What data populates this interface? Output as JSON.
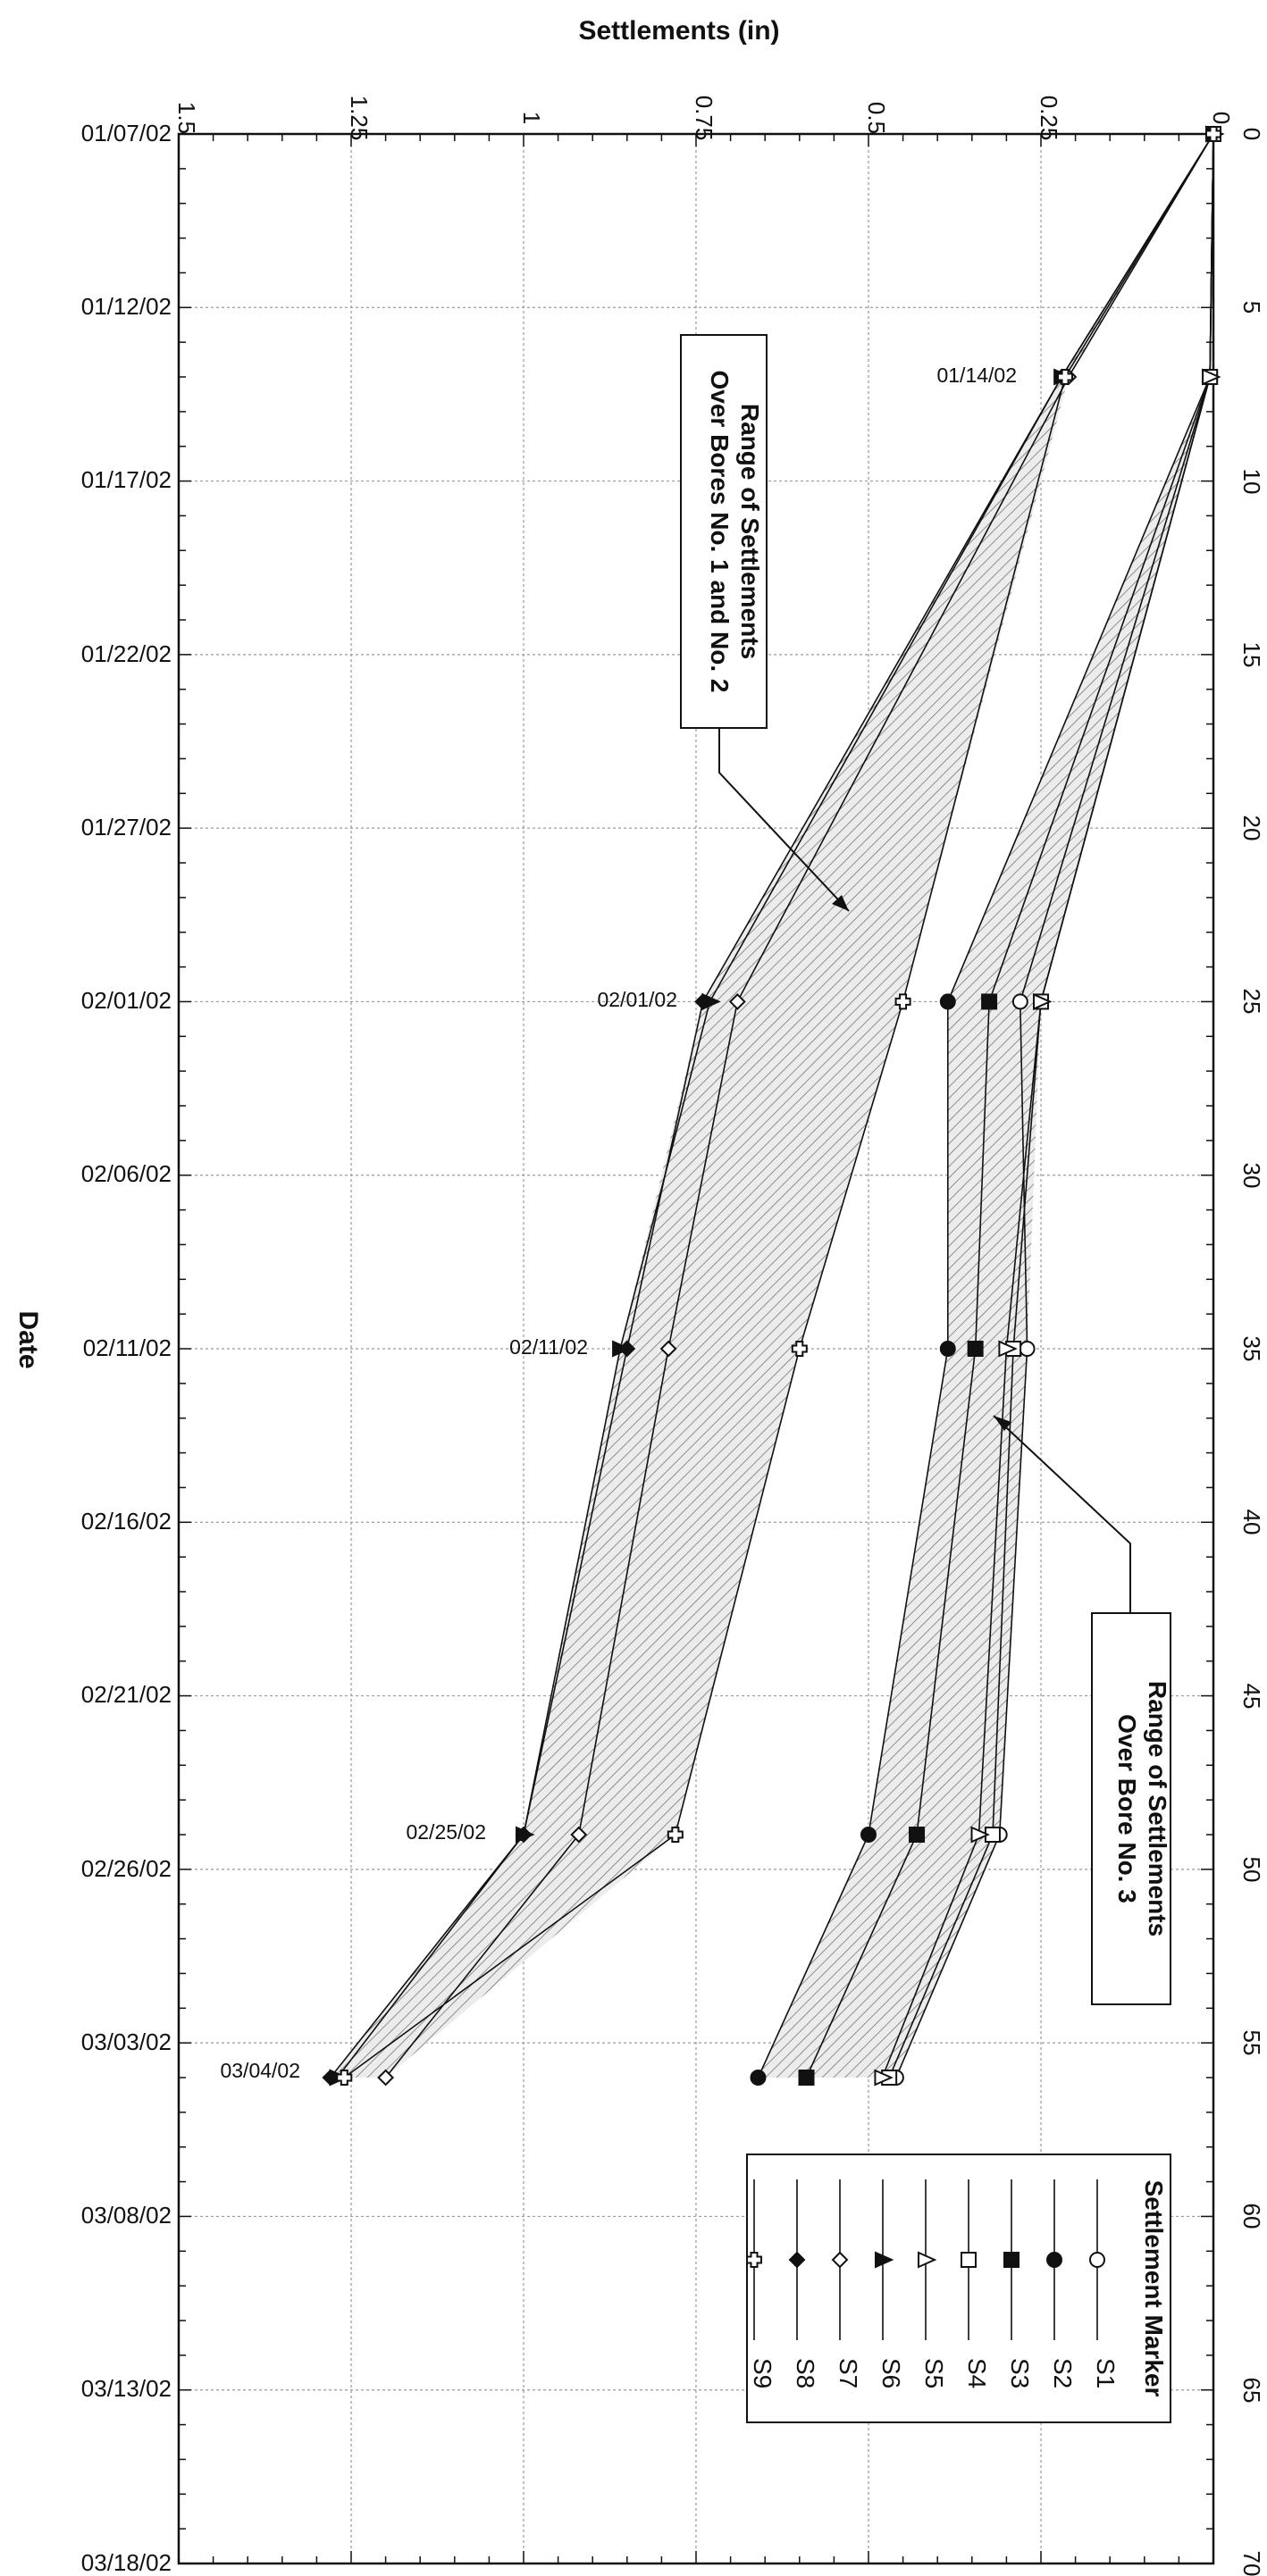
{
  "chart_data": {
    "type": "line",
    "title": "",
    "x_axis_label": "Date",
    "y_axis_label": "Settlements (in)",
    "day_tick_values": [
      0,
      5,
      10,
      15,
      20,
      25,
      30,
      35,
      40,
      45,
      50,
      55,
      60,
      65,
      70
    ],
    "date_tick_labels": [
      "01/07/02",
      "01/12/02",
      "01/17/02",
      "01/22/02",
      "01/27/02",
      "02/01/02",
      "02/06/02",
      "02/11/02",
      "02/16/02",
      "02/21/02",
      "02/26/02",
      "03/03/02",
      "03/08/02",
      "03/13/02",
      "03/18/02"
    ],
    "settlement_tick_labels": [
      "0",
      "0.25",
      "0.5",
      "0.75",
      "1",
      "1.25",
      "1.5"
    ],
    "xlim_days": [
      0,
      70
    ],
    "ylim_in": [
      0,
      1.5
    ],
    "grid": true,
    "survey_days": [
      0,
      7,
      25,
      35,
      49,
      56
    ],
    "survey_labels": [
      "",
      "01/14/02",
      "02/01/02",
      "02/11/02",
      "02/25/02",
      "03/04/02"
    ],
    "series": [
      {
        "name": "S1",
        "marker": "circle-open",
        "values": [
          0,
          0.005,
          0.28,
          0.27,
          0.31,
          0.46
        ]
      },
      {
        "name": "S2",
        "marker": "circle-filled",
        "values": [
          0,
          0.005,
          0.385,
          0.385,
          0.5,
          0.66
        ]
      },
      {
        "name": "S3",
        "marker": "square-filled",
        "values": [
          0,
          0.005,
          0.325,
          0.345,
          0.43,
          0.59
        ]
      },
      {
        "name": "S4",
        "marker": "square-open",
        "values": [
          0,
          0.005,
          0.25,
          0.29,
          0.32,
          0.47
        ]
      },
      {
        "name": "S5",
        "marker": "triangle-open",
        "values": [
          0,
          0.005,
          0.25,
          0.3,
          0.34,
          0.48
        ]
      },
      {
        "name": "S6",
        "marker": "triangle-filled",
        "values": [
          0,
          0.22,
          0.73,
          0.86,
          1.0,
          1.27
        ]
      },
      {
        "name": "S7",
        "marker": "diamond-open",
        "values": [
          0,
          0.21,
          0.69,
          0.79,
          0.92,
          1.2
        ]
      },
      {
        "name": "S8",
        "marker": "diamond-filled",
        "values": [
          0,
          0.22,
          0.74,
          0.85,
          1.0,
          1.28
        ]
      },
      {
        "name": "S9",
        "marker": "cross-open",
        "values": [
          0,
          0.215,
          0.45,
          0.6,
          0.78,
          1.26
        ]
      }
    ],
    "annotations": {
      "box1_lines": [
        "Range of Settlements",
        "Over Bores No. 1 and No. 2"
      ],
      "box2_lines": [
        "Range of Settlements",
        "Over Bore No. 3"
      ]
    },
    "legend": {
      "title": "Settlement Marker",
      "placement": "bottom-right",
      "items": [
        "S1",
        "S2",
        "S3",
        "S4",
        "S5",
        "S6",
        "S7",
        "S8",
        "S9"
      ]
    }
  }
}
